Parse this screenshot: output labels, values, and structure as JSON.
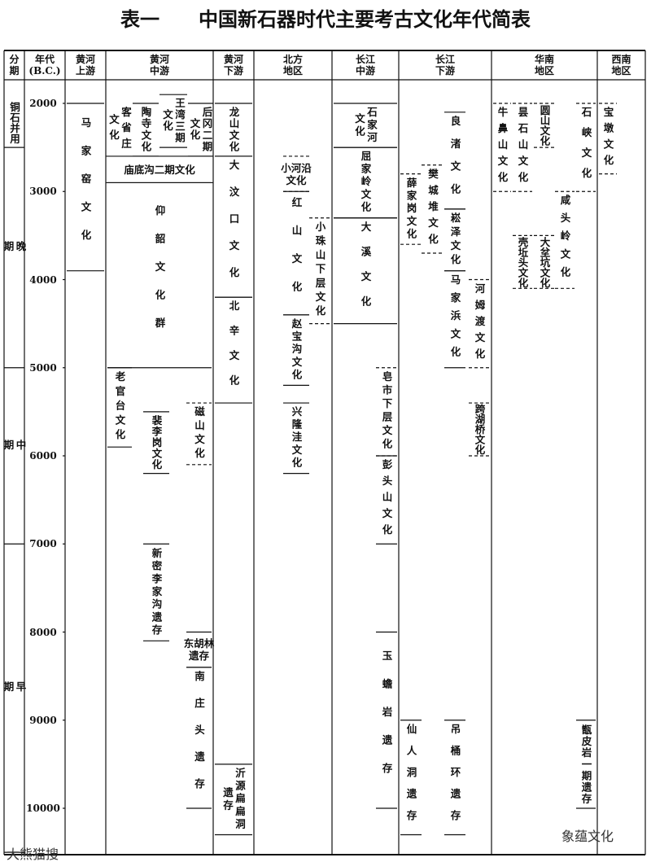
{
  "title": "表一　　中国新石器时代主要考古文化年代简表",
  "headers": [
    "分\n期",
    "年代\n(B.C.)",
    "黄河\n上游",
    "黄河\n中游",
    "黄河\n下游",
    "北方\n地区",
    "长江\n中游",
    "长江\n下游",
    "华南\n地区",
    "西南\n地区"
  ],
  "years": [
    2000,
    3000,
    4000,
    5000,
    6000,
    7000,
    8000,
    9000,
    10000
  ],
  "periods": [
    {
      "name": "铜石并用",
      "from": 2000,
      "to": 2500
    },
    {
      "name": "晚\n期",
      "from": 2500,
      "to": 5000
    },
    {
      "name": "中\n期",
      "from": 5000,
      "to": 7000
    },
    {
      "name": "早\n期",
      "from": 7000,
      "to": 10500
    }
  ],
  "cultures": [
    {
      "name": "马家窑文化",
      "from": 2000,
      "to": 3900,
      "border": "solid"
    },
    {
      "name": "客省庄\n文化",
      "from": 2000,
      "to": 2600,
      "border": "none"
    },
    {
      "name": "陶寺文化",
      "from": 2000,
      "to": 2600,
      "border": "solid"
    },
    {
      "name": "王湾三期\n文化",
      "from": 1900,
      "to": 2500,
      "border": "solid"
    },
    {
      "name": "后冈二期\n文化",
      "from": 2000,
      "to": 2600,
      "border": "solid"
    },
    {
      "name": "庙底沟二期文化",
      "from": 2600,
      "to": 2900,
      "border": "solid"
    },
    {
      "name": "仰韶文化群",
      "from": 2900,
      "to": 5000,
      "border": "solid"
    },
    {
      "name": "老官台文化",
      "from": 5000,
      "to": 5900,
      "border": "solid"
    },
    {
      "name": "裴李岗文化",
      "from": 5500,
      "to": 6200,
      "border": "solid"
    },
    {
      "name": "磁山文化",
      "from": 5400,
      "to": 6100,
      "border": "dashed"
    },
    {
      "name": "新密李家沟遗存",
      "from": 7000,
      "to": 8100,
      "border": "solid"
    },
    {
      "name": "东胡林\n遗存",
      "from": 8000,
      "to": 8400,
      "border": "solid"
    },
    {
      "name": "南庄头遗存",
      "from": 8400,
      "to": 10000,
      "border": "solid"
    },
    {
      "name": "龙山文化",
      "from": 2000,
      "to": 2600,
      "border": "solid"
    },
    {
      "name": "大汶口文化",
      "from": 2600,
      "to": 4200,
      "border": "solid"
    },
    {
      "name": "北辛文化",
      "from": 4200,
      "to": 5400,
      "border": "solid"
    },
    {
      "name": "沂源扁扁洞\n遗存",
      "from": 9500,
      "to": 10300,
      "border": "solid"
    },
    {
      "name": "小河沿\n文化",
      "from": 2600,
      "to": 3000,
      "border": "dashed"
    },
    {
      "name": "红山文化",
      "from": 3000,
      "to": 4400,
      "border": "solid"
    },
    {
      "name": "小珠山下层文化",
      "from": 3300,
      "to": 4500,
      "border": "dashed"
    },
    {
      "name": "赵宝沟文化",
      "from": 4400,
      "to": 5200,
      "border": "solid"
    },
    {
      "name": "兴隆洼文化",
      "from": 5400,
      "to": 6200,
      "border": "solid"
    },
    {
      "name": "石家河\n文化",
      "from": 2000,
      "to": 2500,
      "border": "solid"
    },
    {
      "name": "屈家岭文化",
      "from": 2500,
      "to": 3300,
      "border": "solid"
    },
    {
      "name": "大溪文化",
      "from": 3300,
      "to": 4500,
      "border": "solid"
    },
    {
      "name": "皂市下层文化",
      "from": 5000,
      "to": 6000,
      "border": "dashed"
    },
    {
      "name": "彭头山文化",
      "from": 6000,
      "to": 7000,
      "border": "solid"
    },
    {
      "name": "玉蟾岩遗存",
      "from": 8000,
      "to": 10000,
      "border": "solid"
    },
    {
      "name": "薛家岗文化",
      "from": 2800,
      "to": 3600,
      "border": "dashed"
    },
    {
      "name": "樊城堆文化",
      "from": 2700,
      "to": 3700,
      "border": "dashed"
    },
    {
      "name": "良渚文化",
      "from": 2100,
      "to": 3200,
      "border": "solid"
    },
    {
      "name": "崧泽文化",
      "from": 3200,
      "to": 3900,
      "border": "solid"
    },
    {
      "name": "马家浜文化",
      "from": 3900,
      "to": 5000,
      "border": "solid"
    },
    {
      "name": "河姆渡文化",
      "from": 4000,
      "to": 5000,
      "border": "dashed"
    },
    {
      "name": "跨湖桥文化",
      "from": 5400,
      "to": 6000,
      "border": "dashed"
    },
    {
      "name": "仙人洞遗存",
      "from": 9000,
      "to": 10300,
      "border": "solid"
    },
    {
      "name": "吊桶环遗存",
      "from": 9000,
      "to": 10300,
      "border": "solid"
    },
    {
      "name": "牛鼻山文化",
      "from": 2000,
      "to": 3000,
      "border": "dashed"
    },
    {
      "name": "昙石山文化",
      "from": 2000,
      "to": 3000,
      "border": "dashed"
    },
    {
      "name": "圆山文化",
      "from": 2000,
      "to": 2500,
      "border": "dashed"
    },
    {
      "name": "石峡文化",
      "from": 2000,
      "to": 3000,
      "border": "dashed"
    },
    {
      "name": "壳坵头文化",
      "from": 3500,
      "to": 4100,
      "border": "dashed"
    },
    {
      "name": "大坌坑文化",
      "from": 3500,
      "to": 4100,
      "border": "dashed"
    },
    {
      "name": "咸头岭文化",
      "from": 3000,
      "to": 4100,
      "border": "dashed"
    },
    {
      "name": "甑皮岩一期遗存",
      "from": 9000,
      "to": 10000,
      "border": "solid"
    },
    {
      "name": "宝墩文化",
      "from": 2000,
      "to": 2800,
      "border": "dashed"
    }
  ],
  "watermarks": [
    "大熊猫搜",
    "象蕴文化"
  ]
}
